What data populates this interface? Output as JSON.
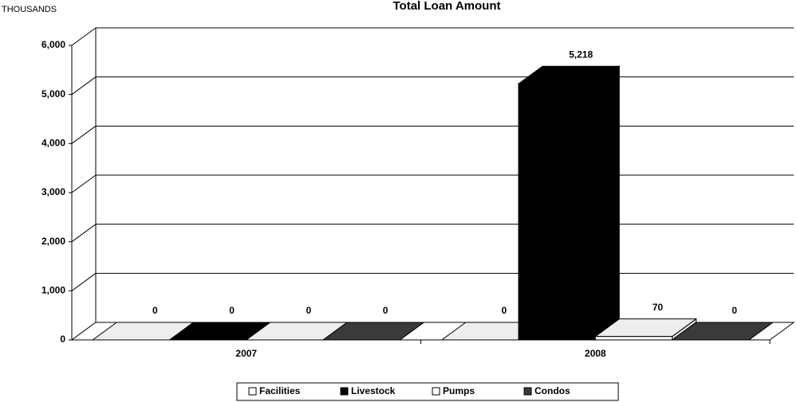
{
  "chart_data": {
    "type": "bar3d",
    "title": "Total Loan Amount",
    "y_axis_label": "THOUSANDS",
    "categories": [
      "2007",
      "2008"
    ],
    "series": [
      {
        "name": "Facilities",
        "color": "#ffffff",
        "values": [
          0,
          0
        ]
      },
      {
        "name": "Livestock",
        "color": "#000000",
        "values": [
          0,
          5218
        ],
        "value_labels": [
          "0",
          "5,218"
        ]
      },
      {
        "name": "Pumps",
        "color": "#ffffff",
        "values": [
          0,
          70
        ]
      },
      {
        "name": "Condos",
        "color": "#3a3a3a",
        "values": [
          0,
          0
        ]
      }
    ],
    "ylim": [
      0,
      6000
    ],
    "yticks": [
      0,
      {
        "value": 1000,
        "label": "1,000"
      },
      {
        "value": 2000,
        "label": "2,000"
      },
      {
        "value": 3000,
        "label": "3,000"
      },
      {
        "value": 4000,
        "label": "4,000"
      },
      {
        "value": 5000,
        "label": "5,000"
      },
      {
        "value": 6000,
        "label": "6,000"
      }
    ],
    "grid": true,
    "legend": "bottom"
  }
}
